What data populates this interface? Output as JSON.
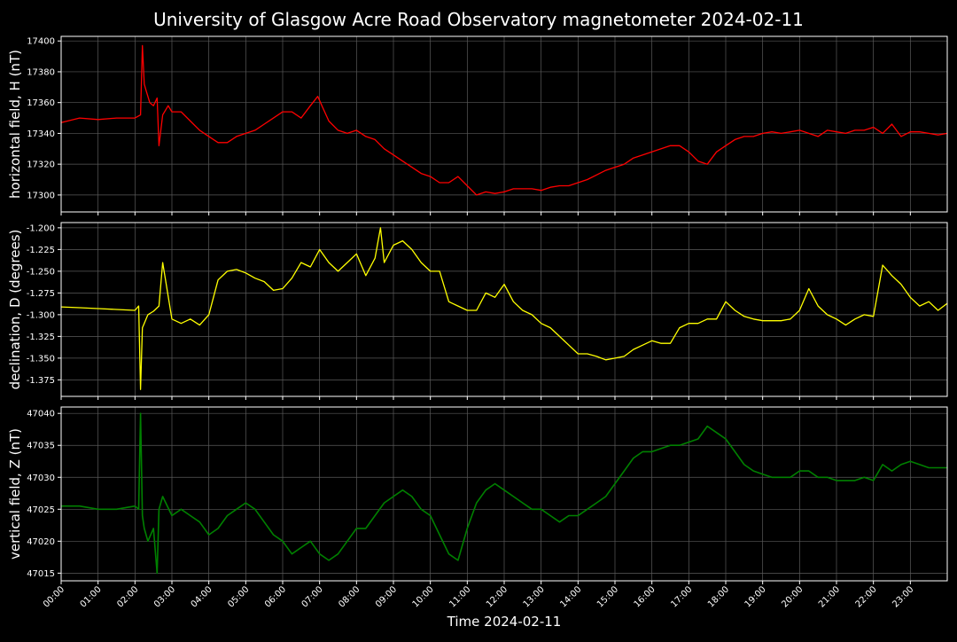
{
  "chart_data": {
    "type": "line",
    "title": "University of Glasgow Acre Road Observatory magnetometer 2024-02-11",
    "xlabel": "Time 2024-02-11",
    "x_unit": "hours",
    "x_ticks": [
      "00:00",
      "01:00",
      "02:00",
      "03:00",
      "04:00",
      "05:00",
      "06:00",
      "07:00",
      "08:00",
      "09:00",
      "10:00",
      "11:00",
      "12:00",
      "13:00",
      "14:00",
      "15:00",
      "16:00",
      "17:00",
      "18:00",
      "19:00",
      "20:00",
      "21:00",
      "22:00",
      "23:00"
    ],
    "xlim": [
      0,
      24
    ],
    "grid": true,
    "panels": [
      {
        "ylabel": "horizontal field, H (nT)",
        "ylim": [
          17289,
          17403
        ],
        "yticks": [
          17300,
          17320,
          17340,
          17360,
          17380,
          17400
        ],
        "ytick_labels": [
          "17300",
          "17320",
          "17340",
          "17360",
          "17380",
          "17400"
        ],
        "series": [
          {
            "color": "#ff0000",
            "x": [
              0,
              0.5,
              1,
              1.5,
              2,
              2.15,
              2.2,
              2.25,
              2.3,
              2.4,
              2.5,
              2.6,
              2.65,
              2.75,
              2.9,
              3,
              3.25,
              3.5,
              3.75,
              4,
              4.25,
              4.5,
              4.75,
              5,
              5.25,
              5.5,
              5.75,
              6,
              6.25,
              6.5,
              6.75,
              6.95,
              7.1,
              7.25,
              7.5,
              7.75,
              8,
              8.25,
              8.5,
              8.75,
              9,
              9.25,
              9.5,
              9.75,
              10,
              10.25,
              10.5,
              10.75,
              11,
              11.25,
              11.5,
              11.75,
              12,
              12.25,
              12.5,
              12.75,
              13,
              13.25,
              13.5,
              13.75,
              14,
              14.25,
              14.5,
              14.75,
              15,
              15.25,
              15.5,
              15.75,
              16,
              16.25,
              16.5,
              16.75,
              17,
              17.25,
              17.5,
              17.75,
              18,
              18.25,
              18.5,
              18.75,
              19,
              19.25,
              19.5,
              19.75,
              20,
              20.25,
              20.5,
              20.75,
              21,
              21.25,
              21.5,
              21.75,
              22,
              22.25,
              22.5,
              22.75,
              23,
              23.25,
              23.5,
              23.75,
              24
            ],
            "y": [
              17347,
              17350,
              17349,
              17350,
              17350,
              17352,
              17397,
              17372,
              17368,
              17360,
              17358,
              17363,
              17332,
              17352,
              17358,
              17354,
              17354,
              17348,
              17342,
              17338,
              17334,
              17334,
              17338,
              17340,
              17342,
              17346,
              17350,
              17354,
              17354,
              17350,
              17358,
              17364,
              17356,
              17348,
              17342,
              17340,
              17342,
              17338,
              17336,
              17330,
              17326,
              17322,
              17318,
              17314,
              17312,
              17308,
              17308,
              17312,
              17306,
              17300,
              17302,
              17301,
              17302,
              17304,
              17304,
              17304,
              17303,
              17305,
              17306,
              17306,
              17308,
              17310,
              17313,
              17316,
              17318,
              17320,
              17324,
              17326,
              17328,
              17330,
              17332,
              17332,
              17328,
              17322,
              17320,
              17328,
              17332,
              17336,
              17338,
              17338,
              17340,
              17341,
              17340,
              17341,
              17342,
              17340,
              17338,
              17342,
              17341,
              17340,
              17342,
              17342,
              17344,
              17340,
              17346,
              17338,
              17341,
              17341,
              17340,
              17339,
              17340
            ]
          }
        ]
      },
      {
        "ylabel": "declination, D (degrees)",
        "ylim": [
          -1.394,
          -1.194
        ],
        "yticks": [
          -1.375,
          -1.35,
          -1.325,
          -1.3,
          -1.275,
          -1.25,
          -1.225,
          -1.2
        ],
        "ytick_labels": [
          "-1.375",
          "-1.350",
          "-1.325",
          "-1.300",
          "-1.275",
          "-1.250",
          "-1.225",
          "-1.200"
        ],
        "series": [
          {
            "color": "#ffff00",
            "x": [
              0,
              0.5,
              1,
              1.5,
              2,
              2.1,
              2.15,
              2.2,
              2.25,
              2.35,
              2.5,
              2.65,
              2.75,
              3,
              3.25,
              3.5,
              3.75,
              4,
              4.25,
              4.5,
              4.75,
              5,
              5.25,
              5.5,
              5.75,
              6,
              6.25,
              6.5,
              6.75,
              7,
              7.25,
              7.5,
              7.75,
              8,
              8.25,
              8.5,
              8.65,
              8.75,
              9,
              9.25,
              9.5,
              9.75,
              10,
              10.25,
              10.5,
              10.75,
              11,
              11.25,
              11.5,
              11.75,
              12,
              12.25,
              12.5,
              12.75,
              13,
              13.25,
              13.5,
              13.75,
              14,
              14.25,
              14.5,
              14.75,
              15,
              15.25,
              15.5,
              15.75,
              16,
              16.25,
              16.5,
              16.75,
              17,
              17.25,
              17.5,
              17.75,
              18,
              18.25,
              18.5,
              18.75,
              19,
              19.25,
              19.5,
              19.75,
              20,
              20.25,
              20.5,
              20.75,
              21,
              21.25,
              21.5,
              21.75,
              22,
              22.25,
              22.5,
              22.75,
              23,
              23.25,
              23.5,
              23.75,
              24
            ],
            "y": [
              -1.291,
              -1.292,
              -1.293,
              -1.294,
              -1.295,
              -1.29,
              -1.386,
              -1.315,
              -1.31,
              -1.3,
              -1.296,
              -1.29,
              -1.24,
              -1.305,
              -1.31,
              -1.305,
              -1.312,
              -1.3,
              -1.26,
              -1.25,
              -1.248,
              -1.252,
              -1.258,
              -1.262,
              -1.272,
              -1.27,
              -1.258,
              -1.24,
              -1.245,
              -1.225,
              -1.24,
              -1.25,
              -1.24,
              -1.23,
              -1.255,
              -1.235,
              -1.2,
              -1.24,
              -1.22,
              -1.215,
              -1.225,
              -1.24,
              -1.25,
              -1.25,
              -1.285,
              -1.29,
              -1.295,
              -1.295,
              -1.275,
              -1.28,
              -1.265,
              -1.285,
              -1.295,
              -1.3,
              -1.31,
              -1.315,
              -1.325,
              -1.335,
              -1.345,
              -1.345,
              -1.348,
              -1.352,
              -1.35,
              -1.348,
              -1.34,
              -1.335,
              -1.33,
              -1.333,
              -1.333,
              -1.315,
              -1.31,
              -1.31,
              -1.305,
              -1.305,
              -1.285,
              -1.295,
              -1.302,
              -1.305,
              -1.307,
              -1.307,
              -1.307,
              -1.305,
              -1.295,
              -1.27,
              -1.29,
              -1.3,
              -1.305,
              -1.312,
              -1.305,
              -1.3,
              -1.302,
              -1.243,
              -1.255,
              -1.265,
              -1.28,
              -1.29,
              -1.285,
              -1.295,
              -1.287
            ]
          }
        ]
      },
      {
        "ylabel": "vertical field, Z (nT)",
        "ylim": [
          47013.8,
          47041
        ],
        "yticks": [
          47015,
          47020,
          47025,
          47030,
          47035,
          47040
        ],
        "ytick_labels": [
          "47015",
          "47020",
          "47025",
          "47030",
          "47035",
          "47040"
        ],
        "series": [
          {
            "color": "#008000",
            "x": [
              0,
              0.5,
              1,
              1.5,
              2,
              2.1,
              2.15,
              2.2,
              2.25,
              2.35,
              2.5,
              2.6,
              2.65,
              2.75,
              3,
              3.25,
              3.5,
              3.75,
              4,
              4.25,
              4.5,
              4.75,
              5,
              5.25,
              5.5,
              5.75,
              6,
              6.25,
              6.5,
              6.75,
              7,
              7.25,
              7.5,
              7.75,
              8,
              8.25,
              8.5,
              8.75,
              9,
              9.25,
              9.5,
              9.75,
              10,
              10.25,
              10.5,
              10.75,
              11,
              11.25,
              11.5,
              11.75,
              12,
              12.25,
              12.5,
              12.75,
              13,
              13.25,
              13.5,
              13.75,
              14,
              14.25,
              14.5,
              14.75,
              15,
              15.25,
              15.5,
              15.75,
              16,
              16.25,
              16.5,
              16.75,
              17,
              17.25,
              17.5,
              17.75,
              18,
              18.25,
              18.5,
              18.75,
              19,
              19.25,
              19.5,
              19.75,
              20,
              20.25,
              20.5,
              20.75,
              21,
              21.25,
              21.5,
              21.75,
              22,
              22.25,
              22.5,
              22.75,
              23,
              23.25,
              23.5,
              23.75,
              24
            ],
            "y": [
              47025.5,
              47025.5,
              47025,
              47025,
              47025.5,
              47025,
              47040,
              47024,
              47022,
              47020,
              47022,
              47015,
              47025,
              47027,
              47024,
              47025,
              47024,
              47023,
              47021,
              47022,
              47024,
              47025,
              47026,
              47025,
              47023,
              47021,
              47020,
              47018,
              47019,
              47020,
              47018,
              47017,
              47018,
              47020,
              47022,
              47022,
              47024,
              47026,
              47027,
              47028,
              47027,
              47025,
              47024,
              47021,
              47018,
              47017,
              47022,
              47026,
              47028,
              47029,
              47028,
              47027,
              47026,
              47025,
              47025,
              47024,
              47023,
              47024,
              47024,
              47025,
              47026,
              47027,
              47029,
              47031,
              47033,
              47034,
              47034,
              47034.5,
              47035,
              47035,
              47035.5,
              47036,
              47038,
              47037,
              47036,
              47034,
              47032,
              47031,
              47030.5,
              47030,
              47030,
              47030,
              47031,
              47031,
              47030,
              47030,
              47029.5,
              47029.5,
              47029.5,
              47030,
              47029.5,
              47032,
              47031,
              47032,
              47032.5,
              47032,
              47031.5,
              47031.5,
              47031.5
            ]
          }
        ]
      }
    ]
  }
}
